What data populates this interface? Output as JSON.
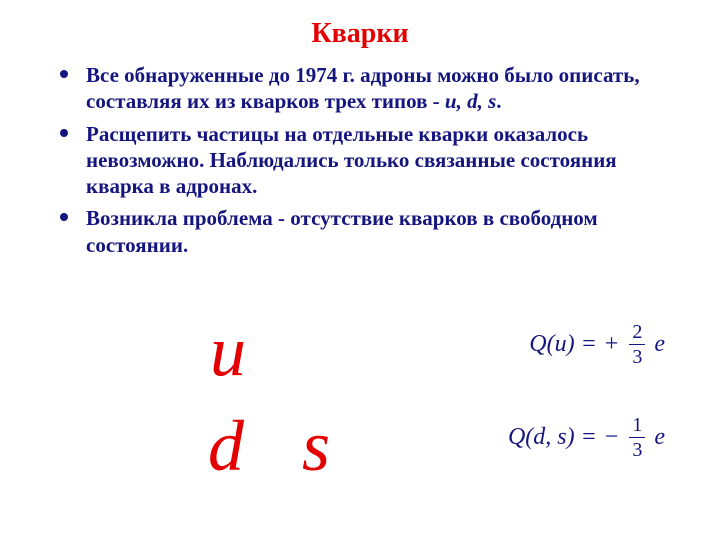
{
  "title": {
    "text": "Кварки",
    "color": "#e40000"
  },
  "bullets": {
    "text_color": "#15157f",
    "dot_color": "#15157f",
    "items": [
      {
        "prefix": "Все обнаруженные до 1974 г. адроны можно было описать, составляя их из кварков трех типов - ",
        "italic": "u, d, s",
        "suffix": "."
      },
      {
        "prefix": "Расщепить частицы на отдельные кварки оказалось невозможно. Наблюдались только связанные состояния кварка в адронах.",
        "italic": "",
        "suffix": ""
      },
      {
        "prefix": "Возникла проблема - отсутствие кварков в свободном состоянии.",
        "italic": "",
        "suffix": ""
      }
    ]
  },
  "quark_symbols": {
    "color": "#e40000",
    "u": "u",
    "d": "d",
    "s": "s"
  },
  "formulas": {
    "color": "#15157f",
    "f1": {
      "lhs": "Q(u) = ",
      "sign": "+",
      "num": "2",
      "den": "3",
      "rhs": "e"
    },
    "f2": {
      "lhs": "Q(d, s) = ",
      "sign": "−",
      "num": "1",
      "den": "3",
      "rhs": "e"
    }
  }
}
